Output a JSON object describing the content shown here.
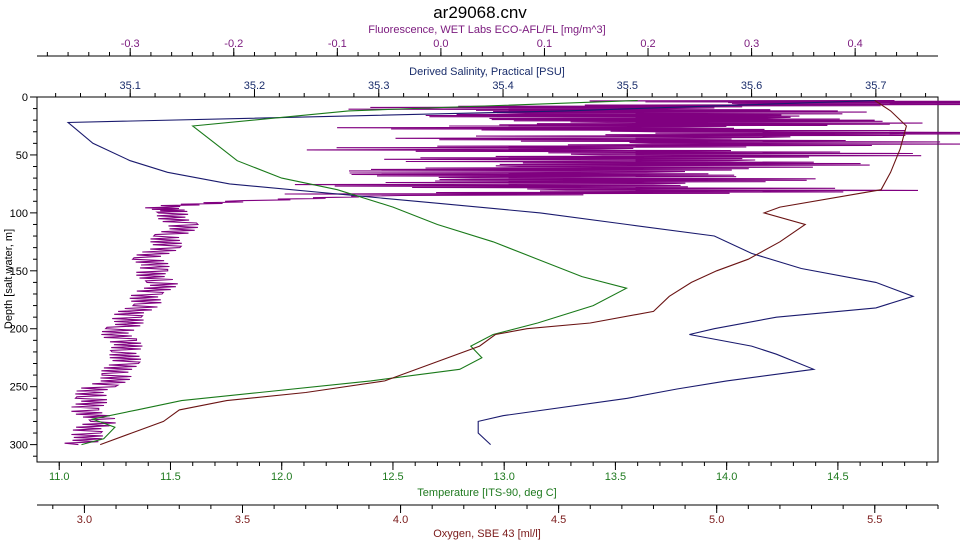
{
  "chart_data": {
    "type": "line",
    "title": "ar29068.cnv",
    "y_axis": {
      "label": "Depth [salt water, m]",
      "range": [
        0,
        315
      ],
      "ticks": [
        0,
        50,
        100,
        150,
        200,
        250,
        300
      ],
      "inverted": true,
      "color": "#000000"
    },
    "x_axes": [
      {
        "id": "fluorescence",
        "position": "top-outer",
        "label": "Fluorescence, WET Labs ECO-AFL/FL [mg/m^3]",
        "range": [
          -0.39,
          0.48
        ],
        "ticks": [
          -0.3,
          -0.2,
          -0.1,
          0.0,
          0.1,
          0.2,
          0.3,
          0.4
        ],
        "tick_labels": [
          "-0.3",
          "-0.2",
          "-0.1",
          "0.0",
          "0.1",
          "0.2",
          "0.3",
          "0.4"
        ],
        "color": "#7b1a7e"
      },
      {
        "id": "salinity",
        "position": "top-inner",
        "label": "Derived Salinity, Practical [PSU]",
        "range": [
          35.025,
          35.75
        ],
        "ticks": [
          35.1,
          35.2,
          35.3,
          35.4,
          35.5,
          35.6,
          35.7
        ],
        "tick_labels": [
          "35.1",
          "35.2",
          "35.3",
          "35.4",
          "35.5",
          "35.6",
          "35.7"
        ],
        "color": "#1a2d6b"
      },
      {
        "id": "temperature",
        "position": "bottom-inner",
        "label": "Temperature [ITS-90, deg C]",
        "range": [
          10.9,
          14.95
        ],
        "ticks": [
          11.0,
          11.5,
          12.0,
          12.5,
          13.0,
          13.5,
          14.0,
          14.5
        ],
        "tick_labels": [
          "11.0",
          "11.5",
          "12.0",
          "12.5",
          "13.0",
          "13.5",
          "14.0",
          "14.5"
        ],
        "color": "#1f7a1f"
      },
      {
        "id": "oxygen",
        "position": "bottom-outer",
        "label": "Oxygen, SBE 43 [ml/l]",
        "range": [
          2.85,
          5.7
        ],
        "ticks": [
          3.0,
          3.5,
          4.0,
          4.5,
          5.0,
          5.5
        ],
        "tick_labels": [
          "3.0",
          "3.5",
          "4.0",
          "4.5",
          "5.0",
          "5.5"
        ],
        "color": "#7a1a1a"
      }
    ],
    "series": [
      {
        "axis": "fluorescence",
        "color": "#800080",
        "noisy": true,
        "points": [
          [
            0.35,
            3
          ],
          [
            0.42,
            6
          ],
          [
            0.05,
            10
          ],
          [
            0.28,
            14
          ],
          [
            0.1,
            18
          ],
          [
            0.38,
            22
          ],
          [
            0.02,
            26
          ],
          [
            0.4,
            30
          ],
          [
            0.15,
            35
          ],
          [
            0.32,
            40
          ],
          [
            0.05,
            45
          ],
          [
            0.3,
            50
          ],
          [
            0.1,
            55
          ],
          [
            0.28,
            60
          ],
          [
            -0.02,
            65
          ],
          [
            0.25,
            70
          ],
          [
            0.0,
            75
          ],
          [
            0.3,
            80
          ],
          [
            -0.05,
            85
          ],
          [
            -0.2,
            90
          ],
          [
            -0.27,
            95
          ],
          [
            -0.26,
            100
          ],
          [
            -0.25,
            110
          ],
          [
            -0.26,
            120
          ],
          [
            -0.27,
            130
          ],
          [
            -0.28,
            140
          ],
          [
            -0.28,
            150
          ],
          [
            -0.27,
            160
          ],
          [
            -0.28,
            170
          ],
          [
            -0.29,
            180
          ],
          [
            -0.3,
            190
          ],
          [
            -0.31,
            200
          ],
          [
            -0.31,
            210
          ],
          [
            -0.3,
            220
          ],
          [
            -0.31,
            230
          ],
          [
            -0.31,
            240
          ],
          [
            -0.33,
            250
          ],
          [
            -0.34,
            260
          ],
          [
            -0.34,
            270
          ],
          [
            -0.33,
            280
          ],
          [
            -0.34,
            290
          ],
          [
            -0.35,
            300
          ]
        ]
      },
      {
        "axis": "salinity",
        "color": "#1a1a6e",
        "noisy": false,
        "points": [
          [
            35.7,
            3
          ],
          [
            35.45,
            12
          ],
          [
            35.05,
            22
          ],
          [
            35.07,
            40
          ],
          [
            35.1,
            55
          ],
          [
            35.13,
            65
          ],
          [
            35.18,
            75
          ],
          [
            35.28,
            85
          ],
          [
            35.35,
            92
          ],
          [
            35.43,
            100
          ],
          [
            35.5,
            110
          ],
          [
            35.57,
            120
          ],
          [
            35.6,
            135
          ],
          [
            35.64,
            148
          ],
          [
            35.7,
            160
          ],
          [
            35.73,
            172
          ],
          [
            35.7,
            182
          ],
          [
            35.62,
            190
          ],
          [
            35.57,
            200
          ],
          [
            35.55,
            205
          ],
          [
            35.6,
            215
          ],
          [
            35.62,
            222
          ],
          [
            35.65,
            235
          ],
          [
            35.58,
            245
          ],
          [
            35.54,
            252
          ],
          [
            35.5,
            260
          ],
          [
            35.4,
            275
          ],
          [
            35.38,
            280
          ],
          [
            35.38,
            290
          ],
          [
            35.39,
            300
          ]
        ]
      },
      {
        "axis": "temperature",
        "color": "#1a7a1a",
        "noisy": false,
        "points": [
          [
            13.6,
            3
          ],
          [
            12.3,
            12
          ],
          [
            11.6,
            25
          ],
          [
            11.7,
            40
          ],
          [
            11.8,
            55
          ],
          [
            12.0,
            70
          ],
          [
            12.25,
            80
          ],
          [
            12.5,
            95
          ],
          [
            12.7,
            110
          ],
          [
            12.95,
            125
          ],
          [
            13.15,
            140
          ],
          [
            13.35,
            155
          ],
          [
            13.55,
            165
          ],
          [
            13.4,
            180
          ],
          [
            13.15,
            195
          ],
          [
            12.95,
            205
          ],
          [
            12.85,
            215
          ],
          [
            12.9,
            225
          ],
          [
            12.8,
            235
          ],
          [
            12.4,
            245
          ],
          [
            11.9,
            255
          ],
          [
            11.55,
            262
          ],
          [
            11.35,
            270
          ],
          [
            11.15,
            278
          ],
          [
            11.25,
            285
          ],
          [
            11.2,
            295
          ],
          [
            11.1,
            300
          ]
        ]
      },
      {
        "axis": "oxygen",
        "color": "#6b1414",
        "noisy": false,
        "points": [
          [
            5.5,
            3
          ],
          [
            5.55,
            12
          ],
          [
            5.6,
            25
          ],
          [
            5.58,
            45
          ],
          [
            5.55,
            65
          ],
          [
            5.52,
            80
          ],
          [
            5.2,
            95
          ],
          [
            5.15,
            100
          ],
          [
            5.28,
            110
          ],
          [
            5.2,
            125
          ],
          [
            5.1,
            140
          ],
          [
            5.0,
            150
          ],
          [
            4.92,
            160
          ],
          [
            4.85,
            172
          ],
          [
            4.8,
            185
          ],
          [
            4.6,
            195
          ],
          [
            4.4,
            200
          ],
          [
            4.3,
            205
          ],
          [
            4.25,
            215
          ],
          [
            4.1,
            230
          ],
          [
            3.95,
            245
          ],
          [
            3.7,
            255
          ],
          [
            3.45,
            262
          ],
          [
            3.3,
            270
          ],
          [
            3.25,
            280
          ],
          [
            3.15,
            290
          ],
          [
            3.05,
            300
          ]
        ]
      }
    ]
  }
}
